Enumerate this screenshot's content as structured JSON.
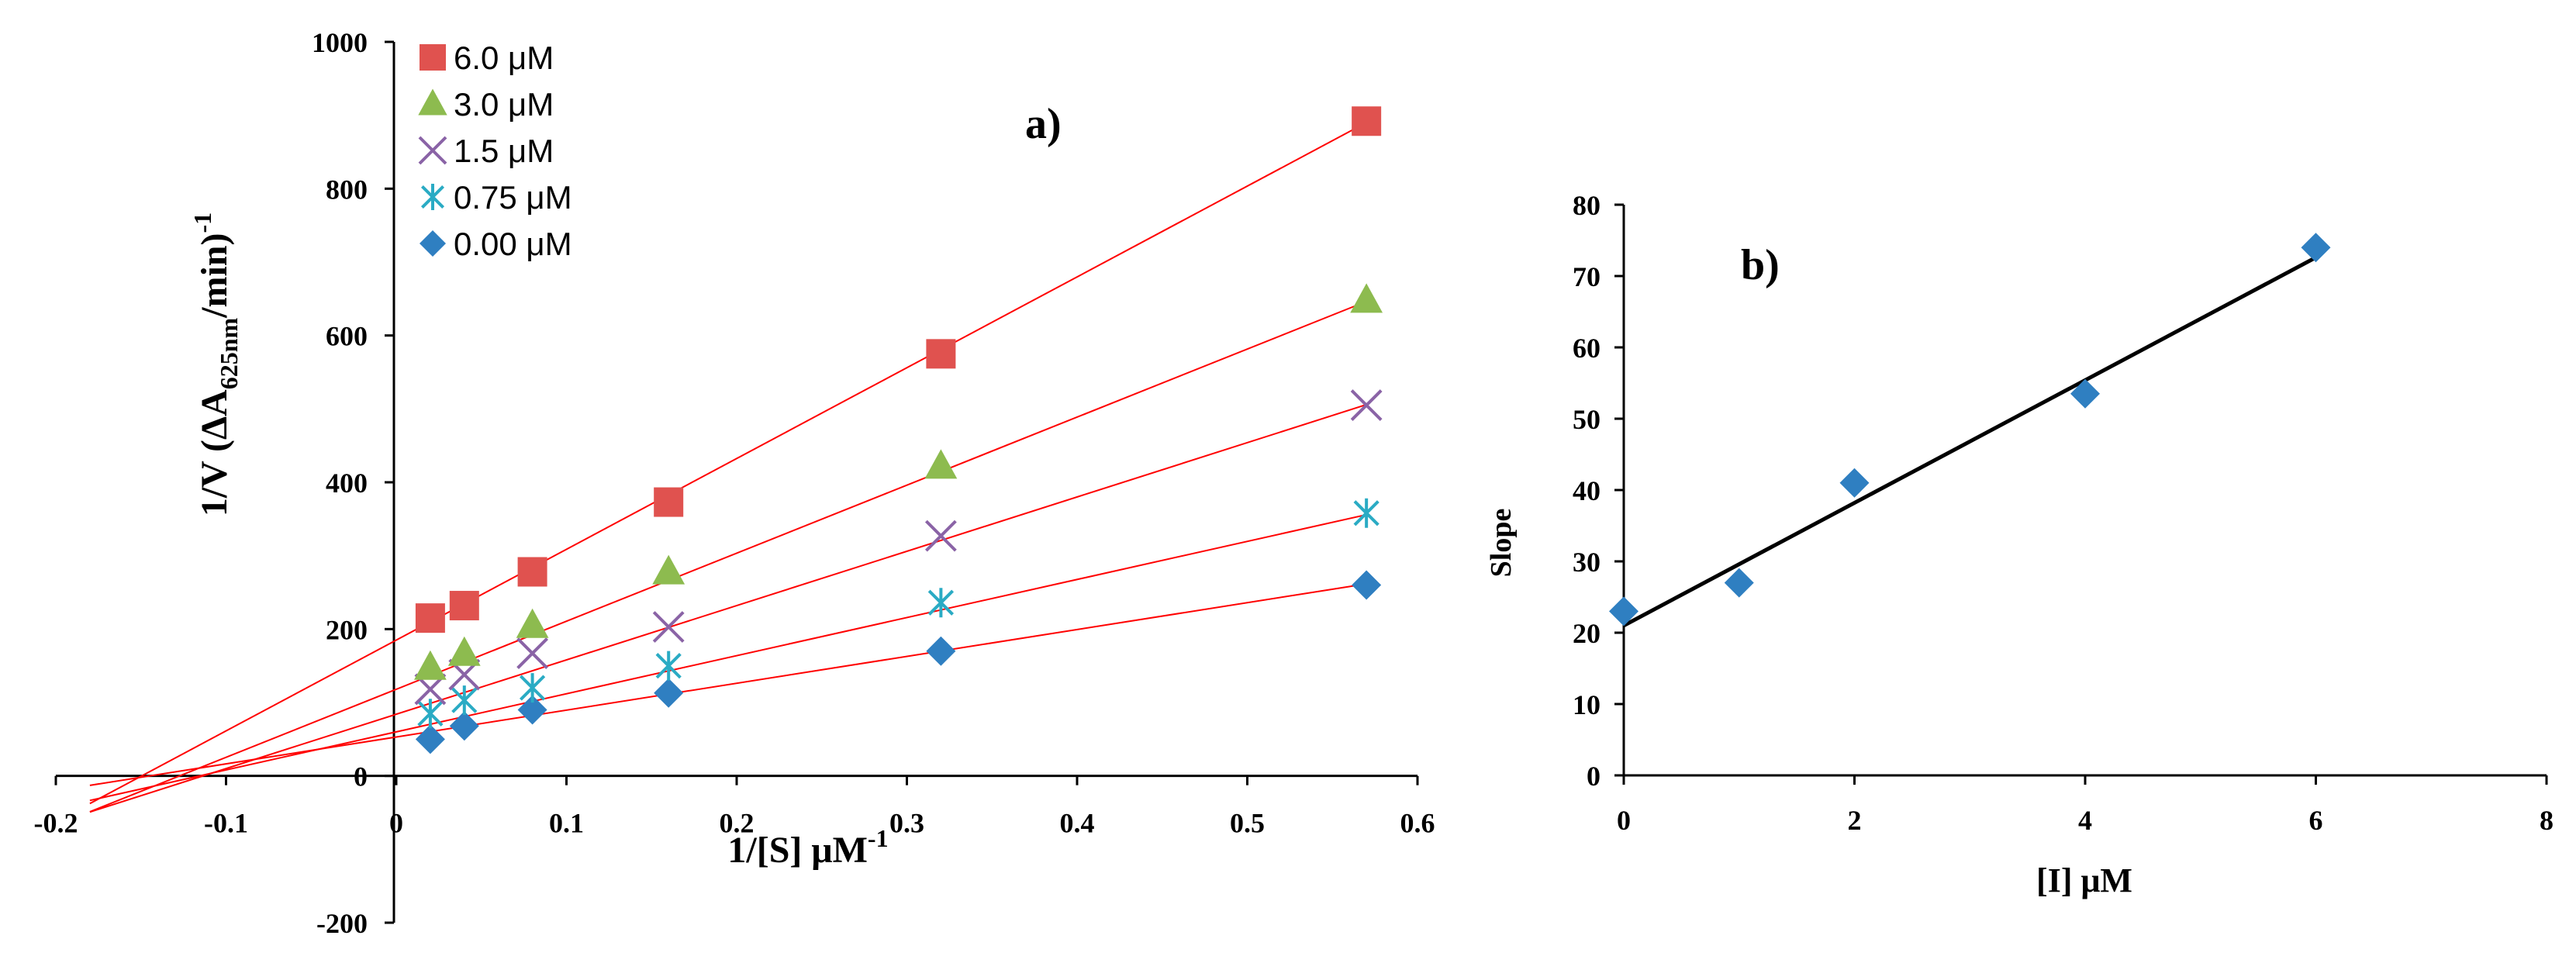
{
  "chart_data": [
    {
      "type": "scatter",
      "panel_label": "a)",
      "xlabel": "1/[S] μM",
      "xlabel_sup": "-1",
      "ylabel_parts": {
        "pre": "1/V (ΔA",
        "sub": "625nm",
        "mid": "/min)",
        "sup": "-1"
      },
      "xlim": [
        -0.2,
        0.6
      ],
      "ylim": [
        -200,
        1000
      ],
      "x_ticks": [
        -0.2,
        -0.1,
        0,
        0.1,
        0.2,
        0.3,
        0.4,
        0.5,
        0.6
      ],
      "x_tick_labels": [
        "-0.2",
        "-0.1",
        "0",
        "0.1",
        "0.2",
        "0.3",
        "0.4",
        "0.5",
        "0.6"
      ],
      "y_ticks": [
        -200,
        0,
        200,
        400,
        600,
        800,
        1000
      ],
      "y_tick_labels": [
        "-200",
        "0",
        "200",
        "400",
        "600",
        "800",
        "1000"
      ],
      "trendline_color": "#ff0000",
      "trendline_x_start": -0.18,
      "legend_position": "top-left",
      "series": [
        {
          "name": "6.0 μM",
          "marker": "square",
          "color": "#e0524f",
          "x": [
            0.02,
            0.04,
            0.08,
            0.16,
            0.32,
            0.57
          ],
          "y": [
            215,
            232,
            278,
            373,
            575,
            892
          ],
          "fit": {
            "slope": 1237,
            "intercept": 185
          }
        },
        {
          "name": "3.0 μM",
          "marker": "triangle",
          "color": "#8dbb4f",
          "x": [
            0.02,
            0.04,
            0.08,
            0.16,
            0.32,
            0.57
          ],
          "y": [
            148,
            167,
            205,
            278,
            422,
            648
          ],
          "fit": {
            "slope": 927,
            "intercept": 118
          }
        },
        {
          "name": "1.5 μM",
          "marker": "cross",
          "color": "#8a63a6",
          "x": [
            0.02,
            0.04,
            0.08,
            0.16,
            0.32,
            0.57
          ],
          "y": [
            118,
            138,
            167,
            203,
            327,
            505
          ],
          "fit": {
            "slope": 740,
            "intercept": 84
          }
        },
        {
          "name": "0.75 μM",
          "marker": "asterisk",
          "color": "#2aabc4",
          "x": [
            0.02,
            0.04,
            0.08,
            0.16,
            0.32,
            0.57
          ],
          "y": [
            85,
            103,
            120,
            150,
            236,
            358
          ],
          "fit": {
            "slope": 519,
            "intercept": 60
          }
        },
        {
          "name": "0.00 μM",
          "marker": "diamond",
          "color": "#2f7fc1",
          "x": [
            0.02,
            0.04,
            0.08,
            0.16,
            0.32,
            0.57
          ],
          "y": [
            50,
            68,
            90,
            113,
            170,
            260
          ],
          "fit": {
            "slope": 366,
            "intercept": 53
          }
        }
      ]
    },
    {
      "type": "scatter",
      "panel_label": "b)",
      "xlabel": "[I] μM",
      "ylabel": "Slope",
      "xlim": [
        0,
        8
      ],
      "ylim": [
        0,
        80
      ],
      "x_ticks": [
        0,
        2,
        4,
        6,
        8
      ],
      "x_tick_labels": [
        "0",
        "2",
        "4",
        "6",
        "8"
      ],
      "y_ticks": [
        0,
        10,
        20,
        30,
        40,
        50,
        60,
        70,
        80
      ],
      "y_tick_labels": [
        "0",
        "10",
        "20",
        "30",
        "40",
        "50",
        "60",
        "70",
        "80"
      ],
      "marker": "diamond",
      "marker_color": "#2f7fc1",
      "trendline_color": "#000000",
      "x": [
        0,
        1,
        2,
        4,
        6
      ],
      "y": [
        23,
        27,
        41,
        53.5,
        74
      ],
      "fit": {
        "slope": 8.6,
        "intercept": 21,
        "x_range": [
          0,
          6
        ]
      }
    }
  ]
}
